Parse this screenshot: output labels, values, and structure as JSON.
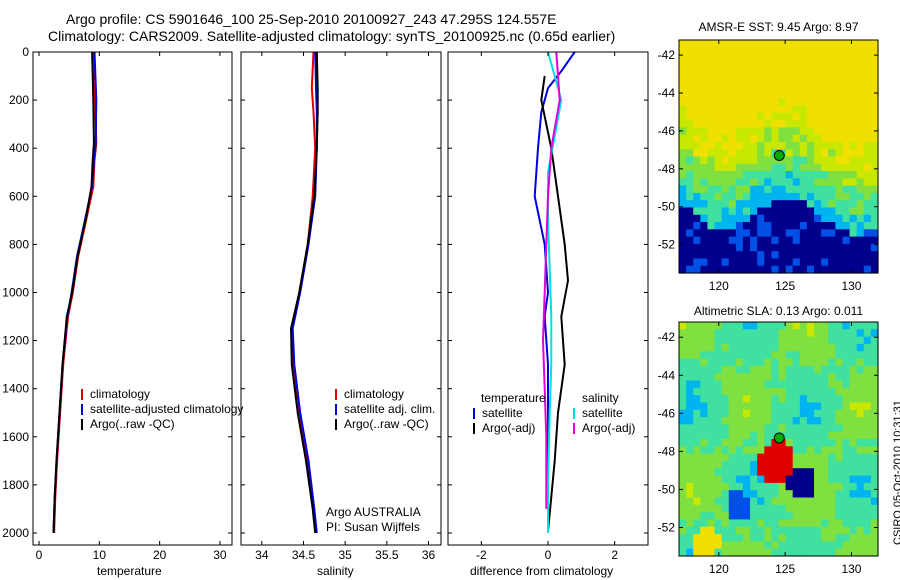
{
  "header": {
    "title_line1": "Argo profile: CS 5901646_100 25-Sep-2010 20100927_243 47.295S 124.557E",
    "title_line2": "Climatology: CARS2009. Satellite-adjusted climatology: synTS_20100925.nc (0.65d earlier)"
  },
  "side_label": "CSIRO 05-Oct-2010 10:31:31",
  "chart_data": [
    {
      "id": "temperature",
      "type": "line",
      "xlabel": "temperature",
      "ylabel": "",
      "xlim": [
        -1,
        32
      ],
      "ylim": [
        2050,
        0
      ],
      "xticks": [
        0,
        10,
        20,
        30
      ],
      "xtick_labels": [
        "0",
        "10",
        "20",
        "30"
      ],
      "yticks": [
        0,
        200,
        400,
        600,
        800,
        1000,
        1200,
        1400,
        1600,
        1800,
        2000
      ],
      "ytick_labels": [
        "0",
        "200",
        "400",
        "600",
        "800",
        "1000",
        "1200",
        "1400",
        "1600",
        "1800",
        "2000"
      ],
      "legend": [
        "climatology",
        "satellite-adjusted climatology",
        "Argo(..raw -QC)"
      ],
      "series": [
        {
          "name": "climatology",
          "color": "#e00000",
          "points": [
            [
              9.0,
              0
            ],
            [
              9.3,
              200
            ],
            [
              9.5,
              380
            ],
            [
              9.2,
              450
            ],
            [
              9.0,
              560
            ],
            [
              7.8,
              700
            ],
            [
              6.5,
              850
            ],
            [
              5.6,
              1000
            ],
            [
              4.8,
              1100
            ],
            [
              4.0,
              1300
            ],
            [
              3.5,
              1500
            ],
            [
              3.0,
              1700
            ],
            [
              2.7,
              1850
            ],
            [
              2.5,
              2000
            ]
          ]
        },
        {
          "name": "satellite-adjusted climatology",
          "color": "#0000e0",
          "points": [
            [
              9.2,
              0
            ],
            [
              9.5,
              200
            ],
            [
              9.4,
              380
            ],
            [
              9.1,
              450
            ],
            [
              8.8,
              560
            ],
            [
              7.6,
              700
            ],
            [
              6.3,
              850
            ],
            [
              5.4,
              1000
            ],
            [
              4.7,
              1100
            ],
            [
              3.9,
              1300
            ],
            [
              3.4,
              1500
            ],
            [
              2.9,
              1700
            ],
            [
              2.6,
              1850
            ],
            [
              2.4,
              2000
            ]
          ]
        },
        {
          "name": "Argo(..raw -QC)",
          "color": "#000000",
          "points": [
            [
              8.8,
              0
            ],
            [
              9.0,
              200
            ],
            [
              9.1,
              380
            ],
            [
              8.9,
              450
            ],
            [
              8.7,
              560
            ],
            [
              7.7,
              700
            ],
            [
              6.4,
              850
            ],
            [
              5.5,
              1000
            ],
            [
              4.6,
              1100
            ],
            [
              3.9,
              1300
            ],
            [
              3.4,
              1500
            ],
            [
              2.9,
              1700
            ],
            [
              2.6,
              1850
            ],
            [
              2.4,
              2000
            ]
          ]
        }
      ]
    },
    {
      "id": "salinity",
      "type": "line",
      "xlabel": "salinity",
      "ylabel": "",
      "xlim": [
        33.75,
        36.15
      ],
      "ylim": [
        2050,
        0
      ],
      "xticks": [
        34,
        34.5,
        35,
        35.5,
        36
      ],
      "xtick_labels": [
        "34",
        "34.5",
        "35",
        "35.5",
        "36"
      ],
      "legend": [
        "climatology",
        "satellite adj. clim.",
        "Argo(..raw -QC)"
      ],
      "annotations": [
        "Argo AUSTRALIA",
        "PI: Susan Wijffels"
      ],
      "series": [
        {
          "name": "climatology",
          "color": "#e00000",
          "points": [
            [
              34.62,
              0
            ],
            [
              34.6,
              150
            ],
            [
              34.62,
              250
            ],
            [
              34.64,
              400
            ],
            [
              34.61,
              600
            ],
            [
              34.55,
              800
            ],
            [
              34.45,
              1000
            ],
            [
              34.36,
              1150
            ],
            [
              34.38,
              1300
            ],
            [
              34.45,
              1500
            ],
            [
              34.55,
              1700
            ],
            [
              34.62,
              1900
            ],
            [
              34.65,
              2000
            ]
          ]
        },
        {
          "name": "satellite adj. clim.",
          "color": "#0000e0",
          "points": [
            [
              34.64,
              0
            ],
            [
              34.65,
              150
            ],
            [
              34.66,
              250
            ],
            [
              34.66,
              400
            ],
            [
              34.64,
              600
            ],
            [
              34.56,
              800
            ],
            [
              34.46,
              1000
            ],
            [
              34.37,
              1150
            ],
            [
              34.39,
              1300
            ],
            [
              34.46,
              1500
            ],
            [
              34.56,
              1700
            ],
            [
              34.63,
              1900
            ],
            [
              34.66,
              2000
            ]
          ]
        },
        {
          "name": "Argo(..raw -QC)",
          "color": "#000000",
          "points": [
            [
              34.66,
              0
            ],
            [
              34.67,
              150
            ],
            [
              34.67,
              250
            ],
            [
              34.66,
              400
            ],
            [
              34.63,
              600
            ],
            [
              34.55,
              800
            ],
            [
              34.45,
              1000
            ],
            [
              34.35,
              1150
            ],
            [
              34.36,
              1300
            ],
            [
              34.43,
              1500
            ],
            [
              34.53,
              1700
            ],
            [
              34.61,
              1900
            ],
            [
              34.64,
              2000
            ]
          ]
        }
      ]
    },
    {
      "id": "difference",
      "type": "line",
      "xlabel": "difference from climatology",
      "ylabel": "",
      "xlim": [
        -3.0,
        3.0
      ],
      "ylim": [
        2050,
        0
      ],
      "xticks": [
        -2,
        0,
        2
      ],
      "xtick_labels": [
        "-2",
        "0",
        "2"
      ],
      "legend_titles": [
        "temperature",
        "salinity"
      ],
      "legend": [
        "satellite",
        "Argo(-adj)",
        "satellite",
        "Argo(-adj)"
      ],
      "series": [
        {
          "name": "temperature satellite",
          "color": "#0000e0",
          "points": [
            [
              0.8,
              0
            ],
            [
              0.4,
              80
            ],
            [
              0.0,
              150
            ],
            [
              -0.2,
              250
            ],
            [
              -0.3,
              400
            ],
            [
              -0.4,
              600
            ],
            [
              -0.1,
              800
            ],
            [
              0.0,
              1000
            ],
            [
              -0.1,
              1100
            ],
            [
              0.0,
              1300
            ],
            [
              0.0,
              1600
            ],
            [
              0.0,
              2000
            ]
          ]
        },
        {
          "name": "temperature Argo(-adj)",
          "color": "#000000",
          "points": [
            [
              -0.1,
              100
            ],
            [
              -0.2,
              200
            ],
            [
              0.1,
              400
            ],
            [
              0.3,
              600
            ],
            [
              0.5,
              800
            ],
            [
              0.6,
              950
            ],
            [
              0.4,
              1100
            ],
            [
              0.5,
              1300
            ],
            [
              0.3,
              1500
            ],
            [
              0.2,
              1700
            ],
            [
              0.1,
              1850
            ],
            [
              0.0,
              1990
            ]
          ]
        },
        {
          "name": "salinity satellite",
          "color": "#00e0e0",
          "points": [
            [
              0.0,
              0
            ],
            [
              0.2,
              100
            ],
            [
              0.4,
              200
            ],
            [
              0.2,
              350
            ],
            [
              0.0,
              500
            ],
            [
              0.0,
              700
            ],
            [
              0.05,
              900
            ],
            [
              0.1,
              1100
            ],
            [
              0.1,
              1300
            ],
            [
              0.05,
              1500
            ],
            [
              0.0,
              1800
            ],
            [
              0.0,
              2000
            ]
          ]
        },
        {
          "name": "salinity Argo(-adj)",
          "color": "#e000e0",
          "points": [
            [
              0.25,
              0
            ],
            [
              0.3,
              100
            ],
            [
              0.35,
              200
            ],
            [
              0.1,
              400
            ],
            [
              0.0,
              600
            ],
            [
              -0.05,
              800
            ],
            [
              -0.1,
              1000
            ],
            [
              -0.15,
              1200
            ],
            [
              -0.1,
              1400
            ],
            [
              -0.05,
              1600
            ],
            [
              -0.05,
              1800
            ],
            [
              -0.05,
              1900
            ]
          ]
        }
      ]
    }
  ],
  "maps": [
    {
      "title": "AMSR-E SST: 9.45 Argo: 8.97",
      "lon_range": [
        117,
        132
      ],
      "lat_range": [
        -53.5,
        -41.2
      ],
      "yticks": [
        "-42",
        "-44",
        "-46",
        "-48",
        "-50",
        "-52"
      ],
      "xticks": [
        "120",
        "125",
        "130"
      ],
      "marker": {
        "lon": 124.557,
        "lat": -47.295,
        "color": "#00aa00"
      },
      "colors": [
        "#00008c",
        "#0050e6",
        "#00b4f0",
        "#40e0a0",
        "#80e040",
        "#c8e800",
        "#f0e000"
      ]
    },
    {
      "title": "Altimetric SLA: 0.13 Argo: 0.011",
      "lon_range": [
        117,
        132
      ],
      "lat_range": [
        -53.5,
        -41.2
      ],
      "yticks": [
        "-42",
        "-44",
        "-46",
        "-48",
        "-50",
        "-52"
      ],
      "xticks": [
        "120",
        "125",
        "130"
      ],
      "marker": {
        "lon": 124.557,
        "lat": -47.295,
        "color": "#00aa00"
      },
      "colors": [
        "#00008c",
        "#0050e6",
        "#00b4f0",
        "#40e0a0",
        "#80e040",
        "#c8e800",
        "#f0e000",
        "#f08000",
        "#e00000"
      ]
    }
  ]
}
